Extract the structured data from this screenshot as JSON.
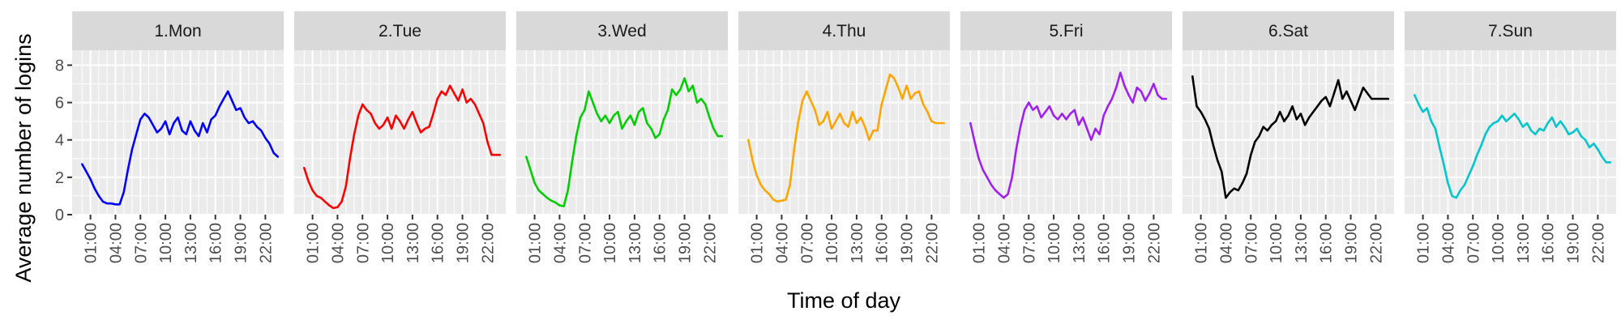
{
  "chart_data": {
    "type": "line",
    "facet_type": "small-multiples",
    "xlabel": "Time of day",
    "ylabel": "Average number of logins",
    "y_ticks": [
      "0",
      "2",
      "4",
      "6",
      "8"
    ],
    "ylim": [
      0,
      8.8
    ],
    "x_ticks": [
      "01:00",
      "04:00",
      "07:00",
      "10:00",
      "13:00",
      "16:00",
      "19:00",
      "22:00"
    ],
    "x_tick_values": [
      1,
      4,
      7,
      10,
      13,
      16,
      19,
      22
    ],
    "xlim": [
      -1.2,
      24.2
    ],
    "grid": true,
    "panel_background": "#ebebeb",
    "strip_background": "#d9d9d9",
    "grid_color": "#ffffff",
    "x": [
      0,
      0.5,
      1,
      1.5,
      2,
      2.5,
      3,
      3.5,
      4,
      4.5,
      5,
      5.5,
      6,
      6.5,
      7,
      7.5,
      8,
      8.5,
      9,
      9.5,
      10,
      10.5,
      11,
      11.5,
      12,
      12.5,
      13,
      13.5,
      14,
      14.5,
      15,
      15.5,
      16,
      16.5,
      17,
      17.5,
      18,
      18.5,
      19,
      19.5,
      20,
      20.5,
      21,
      21.5,
      22,
      22.5,
      23,
      23.5
    ],
    "series": [
      {
        "name": "1.Mon",
        "color": "#0000ff",
        "values": [
          2.7,
          2.3,
          1.9,
          1.4,
          1.0,
          0.7,
          0.6,
          0.6,
          0.55,
          0.55,
          1.2,
          2.4,
          3.5,
          4.3,
          5.1,
          5.4,
          5.2,
          4.8,
          4.4,
          4.6,
          5.0,
          4.3,
          4.9,
          5.2,
          4.5,
          4.3,
          5.0,
          4.5,
          4.2,
          4.9,
          4.4,
          5.1,
          5.3,
          5.8,
          6.2,
          6.6,
          6.1,
          5.6,
          5.7,
          5.2,
          4.9,
          5.0,
          4.7,
          4.5,
          4.1,
          3.8,
          3.3,
          3.1
        ]
      },
      {
        "name": "2.Tue",
        "color": "#ff0000",
        "values": [
          2.5,
          1.8,
          1.3,
          1.0,
          0.9,
          0.7,
          0.5,
          0.35,
          0.4,
          0.7,
          1.5,
          3.0,
          4.3,
          5.3,
          5.9,
          5.6,
          5.4,
          4.9,
          4.6,
          4.8,
          5.2,
          4.6,
          5.3,
          5.0,
          4.6,
          5.1,
          5.5,
          4.9,
          4.4,
          4.6,
          4.7,
          5.4,
          6.2,
          6.6,
          6.4,
          6.9,
          6.5,
          6.1,
          6.7,
          6.0,
          6.2,
          5.9,
          5.4,
          4.9,
          3.9,
          3.2,
          3.2,
          3.2
        ]
      },
      {
        "name": "3.Wed",
        "color": "#00cd00",
        "values": [
          3.1,
          2.4,
          1.7,
          1.3,
          1.1,
          0.9,
          0.75,
          0.65,
          0.5,
          0.45,
          1.3,
          2.8,
          4.2,
          5.2,
          5.6,
          6.6,
          6.0,
          5.4,
          5.0,
          5.3,
          4.9,
          5.3,
          5.5,
          4.6,
          5.0,
          5.3,
          4.8,
          5.5,
          5.7,
          4.9,
          4.6,
          4.1,
          4.3,
          5.1,
          5.6,
          6.7,
          6.4,
          6.7,
          7.3,
          6.6,
          6.9,
          6.0,
          6.2,
          5.9,
          5.2,
          4.6,
          4.2,
          4.2
        ]
      },
      {
        "name": "4.Thu",
        "color": "#ffa500",
        "values": [
          4.0,
          2.9,
          2.1,
          1.6,
          1.3,
          1.1,
          0.8,
          0.7,
          0.75,
          0.8,
          1.6,
          3.5,
          5.0,
          6.1,
          6.6,
          6.1,
          5.6,
          4.8,
          5.0,
          5.5,
          4.6,
          5.0,
          5.4,
          4.9,
          4.7,
          5.5,
          4.9,
          5.2,
          4.7,
          4.0,
          4.5,
          4.5,
          5.9,
          6.7,
          7.5,
          7.3,
          6.8,
          6.2,
          6.9,
          6.2,
          6.5,
          6.6,
          5.9,
          5.5,
          5.0,
          4.9,
          4.9,
          4.9
        ]
      },
      {
        "name": "5.Fri",
        "color": "#a020f0",
        "values": [
          4.9,
          3.9,
          3.0,
          2.4,
          2.0,
          1.6,
          1.3,
          1.1,
          0.9,
          1.1,
          2.0,
          3.5,
          4.7,
          5.6,
          6.0,
          5.6,
          5.8,
          5.2,
          5.5,
          5.8,
          5.3,
          5.1,
          5.4,
          5.1,
          5.4,
          5.6,
          4.8,
          5.2,
          4.6,
          4.0,
          4.6,
          4.3,
          5.3,
          5.8,
          6.2,
          6.8,
          7.6,
          6.9,
          6.4,
          6.0,
          6.8,
          6.6,
          6.1,
          6.5,
          7.0,
          6.4,
          6.2,
          6.2
        ]
      },
      {
        "name": "6.Sat",
        "color": "#000000",
        "values": [
          7.4,
          5.8,
          5.5,
          5.1,
          4.6,
          3.7,
          2.9,
          2.3,
          0.9,
          1.2,
          1.4,
          1.3,
          1.7,
          2.2,
          3.2,
          3.9,
          4.2,
          4.7,
          4.5,
          4.8,
          5.0,
          5.5,
          5.0,
          5.3,
          5.8,
          5.1,
          5.4,
          4.8,
          5.2,
          5.5,
          5.8,
          6.1,
          6.3,
          5.8,
          6.5,
          7.2,
          6.2,
          6.6,
          6.1,
          5.6,
          6.2,
          6.8,
          6.5,
          6.2,
          6.2,
          6.2,
          6.2,
          6.2
        ]
      },
      {
        "name": "7.Sun",
        "color": "#00c5cd",
        "values": [
          6.4,
          5.9,
          5.5,
          5.7,
          5.0,
          4.6,
          3.6,
          2.7,
          1.7,
          1.0,
          0.9,
          1.3,
          1.6,
          2.1,
          2.6,
          3.2,
          3.7,
          4.3,
          4.7,
          4.9,
          5.0,
          5.3,
          5.0,
          5.2,
          5.4,
          5.1,
          4.7,
          4.9,
          4.5,
          4.3,
          4.6,
          4.5,
          4.9,
          5.2,
          4.7,
          5.0,
          4.7,
          4.3,
          4.4,
          4.6,
          4.2,
          4.0,
          3.6,
          3.8,
          3.5,
          3.1,
          2.8,
          2.8
        ]
      }
    ]
  }
}
